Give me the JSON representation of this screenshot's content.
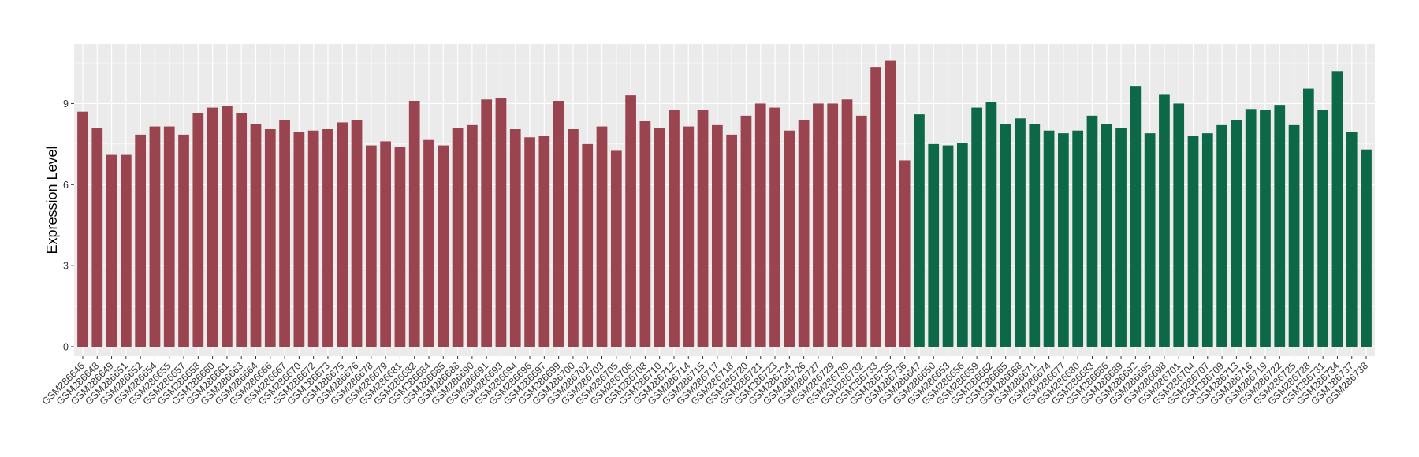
{
  "chart_data": {
    "type": "bar",
    "ylabel": "Expression Level",
    "xlabel": "",
    "ylim": [
      -0.35,
      11.2
    ],
    "yticks": [
      0,
      3,
      6,
      9
    ],
    "ytick_labels": [
      "0",
      "3",
      "6",
      "9"
    ],
    "grid": true,
    "categories": [
      "GSM286646",
      "GSM286648",
      "GSM286649",
      "GSM286651",
      "GSM286652",
      "GSM286654",
      "GSM286655",
      "GSM286657",
      "GSM286658",
      "GSM286660",
      "GSM286661",
      "GSM286663",
      "GSM286664",
      "GSM286666",
      "GSM286667",
      "GSM286670",
      "GSM286672",
      "GSM286673",
      "GSM286675",
      "GSM286676",
      "GSM286678",
      "GSM286679",
      "GSM286681",
      "GSM286682",
      "GSM286684",
      "GSM286685",
      "GSM286688",
      "GSM286690",
      "GSM286691",
      "GSM286693",
      "GSM286694",
      "GSM286696",
      "GSM286697",
      "GSM286699",
      "GSM286700",
      "GSM286702",
      "GSM286703",
      "GSM286705",
      "GSM286706",
      "GSM286708",
      "GSM286710",
      "GSM286712",
      "GSM286714",
      "GSM286715",
      "GSM286717",
      "GSM286718",
      "GSM286720",
      "GSM286721",
      "GSM286723",
      "GSM286724",
      "GSM286726",
      "GSM286727",
      "GSM286729",
      "GSM286730",
      "GSM286732",
      "GSM286733",
      "GSM286735",
      "GSM286736",
      "GSM286647",
      "GSM286650",
      "GSM286653",
      "GSM286656",
      "GSM286659",
      "GSM286662",
      "GSM286665",
      "GSM286668",
      "GSM286671",
      "GSM286674",
      "GSM286677",
      "GSM286680",
      "GSM286683",
      "GSM286686",
      "GSM286689",
      "GSM286692",
      "GSM286695",
      "GSM286698",
      "GSM286701",
      "GSM286704",
      "GSM286707",
      "GSM286709",
      "GSM286713",
      "GSM286716",
      "GSM286719",
      "GSM286722",
      "GSM286725",
      "GSM286728",
      "GSM286731",
      "GSM286734",
      "GSM286737",
      "GSM286738"
    ],
    "values": [
      8.7,
      8.1,
      7.1,
      7.1,
      7.85,
      8.15,
      8.15,
      7.85,
      8.65,
      8.85,
      8.9,
      8.65,
      8.25,
      8.05,
      8.4,
      7.95,
      8.0,
      8.05,
      8.3,
      8.4,
      7.45,
      7.6,
      7.4,
      9.1,
      7.65,
      7.45,
      8.1,
      8.2,
      9.15,
      9.2,
      8.05,
      7.75,
      7.8,
      9.1,
      8.05,
      7.5,
      8.15,
      7.25,
      9.3,
      8.35,
      8.1,
      8.75,
      8.15,
      8.75,
      8.2,
      7.85,
      8.55,
      9.0,
      8.85,
      8.0,
      8.4,
      9.0,
      9.0,
      9.15,
      8.55,
      10.35,
      10.6,
      6.9,
      8.6,
      7.5,
      7.45,
      7.55,
      8.85,
      9.05,
      8.25,
      8.45,
      8.25,
      8.0,
      7.9,
      8.0,
      8.55,
      8.25,
      8.1,
      9.65,
      7.9,
      9.35,
      9.0,
      7.8,
      7.9,
      8.2,
      8.4,
      8.8,
      8.75,
      8.95,
      8.2,
      9.55,
      8.75,
      10.2,
      7.95,
      7.3
    ],
    "group_sizes": [
      58,
      32
    ],
    "colors": [
      "#9a4450",
      "#0d6848"
    ],
    "background": "#ebebeb",
    "gridline_color": "#ffffff"
  }
}
